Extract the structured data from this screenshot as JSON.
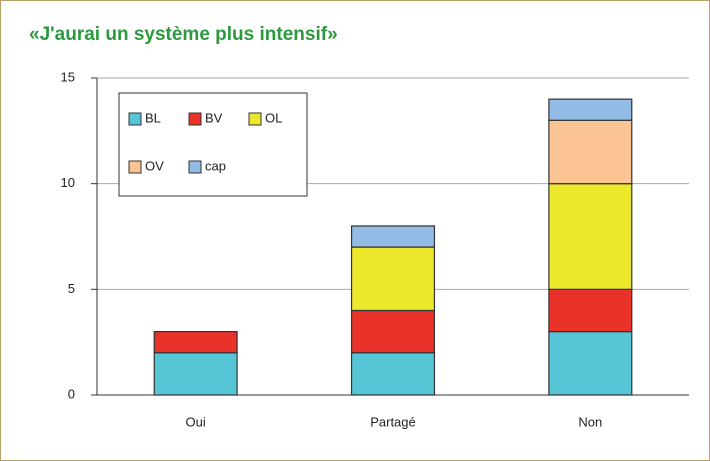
{
  "chart_data": {
    "type": "bar",
    "stacked": true,
    "title": "«J'aurai un système plus intensif»",
    "categories": [
      "Oui",
      "Partagé",
      "Non"
    ],
    "series": [
      {
        "name": "BL",
        "color": "#56c5d5",
        "values": [
          2,
          2,
          3
        ]
      },
      {
        "name": "BV",
        "color": "#e8322a",
        "values": [
          1,
          2,
          2
        ]
      },
      {
        "name": "OL",
        "color": "#ece82c",
        "values": [
          0,
          3,
          5
        ]
      },
      {
        "name": "OV",
        "color": "#fbc492",
        "values": [
          0,
          0,
          3
        ]
      },
      {
        "name": "cap",
        "color": "#92bbe6",
        "values": [
          0,
          1,
          1
        ]
      }
    ],
    "ylim": [
      0,
      15
    ],
    "yticks": [
      0,
      5,
      10,
      15
    ],
    "grid": true,
    "legend": "upper left"
  }
}
